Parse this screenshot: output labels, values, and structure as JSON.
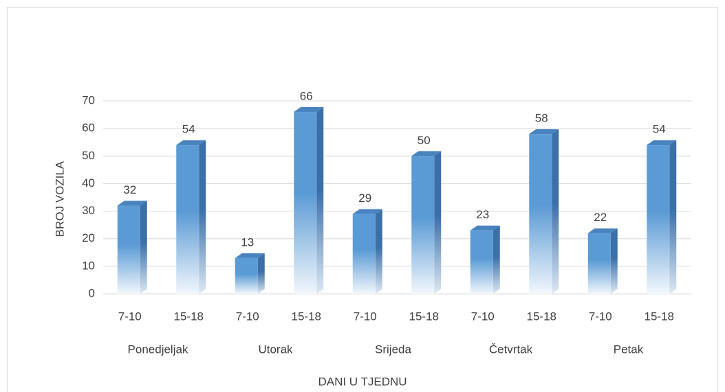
{
  "chart_data": {
    "type": "bar3d",
    "y_axis_label": "BROJ VOZILA",
    "x_axis_label": "DANI U TJEDNU",
    "categories": [
      "7-10",
      "15-18",
      "7-10",
      "15-18",
      "7-10",
      "15-18",
      "7-10",
      "15-18",
      "7-10",
      "15-18"
    ],
    "groups": [
      "Ponedjeljak",
      "Utorak",
      "Srijeda",
      "Četvrtak",
      "Petak"
    ],
    "values": [
      32,
      54,
      13,
      66,
      29,
      50,
      23,
      58,
      22,
      54
    ],
    "color": "#5b9bd5",
    "ylim": [
      0,
      70
    ],
    "yticks": [
      0,
      10,
      20,
      30,
      40,
      50,
      60,
      70
    ],
    "grid": true
  }
}
